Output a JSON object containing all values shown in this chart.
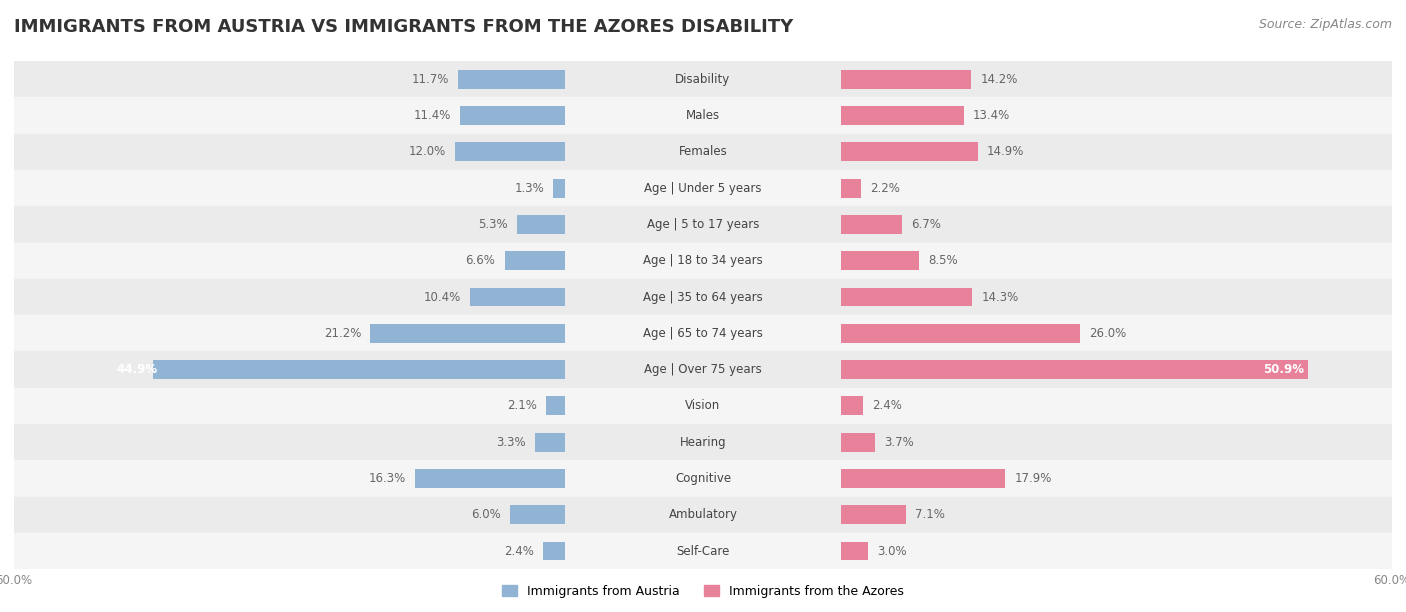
{
  "title": "IMMIGRANTS FROM AUSTRIA VS IMMIGRANTS FROM THE AZORES DISABILITY",
  "source": "Source: ZipAtlas.com",
  "categories": [
    "Disability",
    "Males",
    "Females",
    "Age | Under 5 years",
    "Age | 5 to 17 years",
    "Age | 18 to 34 years",
    "Age | 35 to 64 years",
    "Age | 65 to 74 years",
    "Age | Over 75 years",
    "Vision",
    "Hearing",
    "Cognitive",
    "Ambulatory",
    "Self-Care"
  ],
  "left_values": [
    11.7,
    11.4,
    12.0,
    1.3,
    5.3,
    6.6,
    10.4,
    21.2,
    44.9,
    2.1,
    3.3,
    16.3,
    6.0,
    2.4
  ],
  "right_values": [
    14.2,
    13.4,
    14.9,
    2.2,
    6.7,
    8.5,
    14.3,
    26.0,
    50.9,
    2.4,
    3.7,
    17.9,
    7.1,
    3.0
  ],
  "left_color": "#92B4D4",
  "right_color": "#E8829A",
  "left_label": "Immigrants from Austria",
  "right_label": "Immigrants from the Azores",
  "axis_limit": 60.0,
  "row_color_even": "#ebebeb",
  "row_color_odd": "#f5f5f5",
  "bar_background": "#ffffff",
  "title_fontsize": 13,
  "source_fontsize": 9,
  "value_fontsize": 8.5,
  "cat_fontsize": 8.5,
  "legend_fontsize": 9,
  "bar_height": 0.52
}
